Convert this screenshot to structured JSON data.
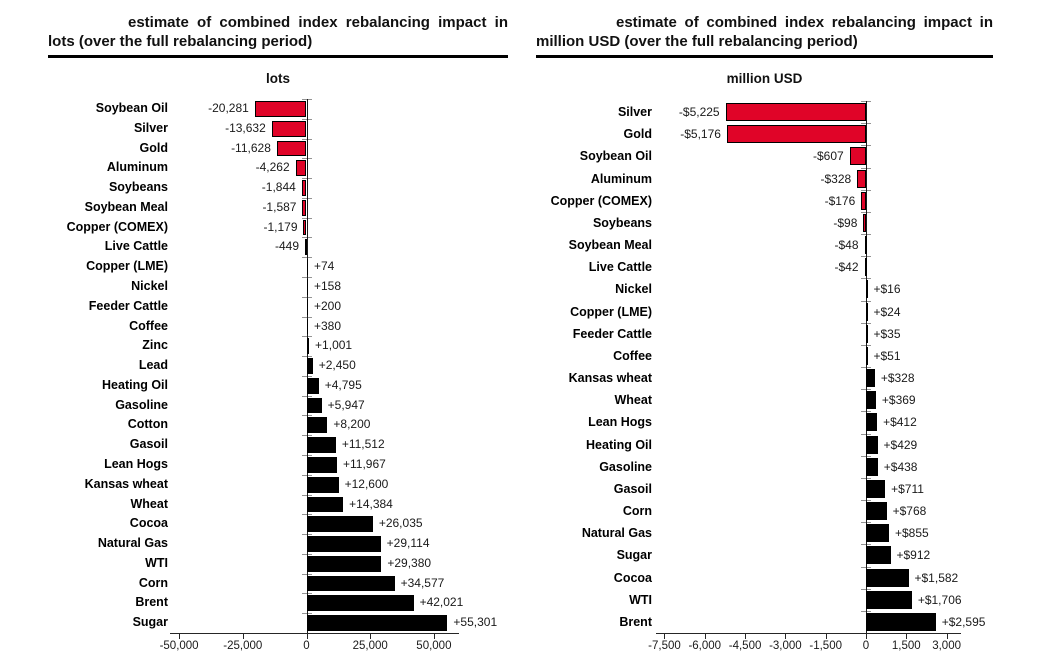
{
  "chart_data": [
    {
      "type": "bar",
      "orientation": "horizontal",
      "title": "estimate of combined index rebalancing impact in lots (over the full rebalancing period)",
      "axis_title": "lots",
      "unit": "lots",
      "gridlines": false,
      "legend": null,
      "xlim": [
        -53500,
        60500
      ],
      "bar_colors": {
        "negative": "#e00428",
        "positive": "#000000"
      },
      "categories": [
        "Soybean Oil",
        "Silver",
        "Gold",
        "Aluminum",
        "Soybeans",
        "Soybean Meal",
        "Copper (COMEX)",
        "Live Cattle",
        "Copper (LME)",
        "Nickel",
        "Feeder Cattle",
        "Coffee",
        "Zinc",
        "Lead",
        "Heating Oil",
        "Gasoline",
        "Cotton",
        "Gasoil",
        "Lean Hogs",
        "Kansas wheat",
        "Wheat",
        "Cocoa",
        "Natural Gas",
        "WTI",
        "Corn",
        "Brent",
        "Sugar"
      ],
      "values": [
        -20281,
        -13632,
        -11628,
        -4262,
        -1844,
        -1587,
        -1179,
        -449,
        74,
        158,
        200,
        380,
        1001,
        2450,
        4795,
        5947,
        8200,
        11512,
        11967,
        12600,
        14384,
        26035,
        29114,
        29380,
        34577,
        42021,
        55301
      ],
      "value_labels": [
        "-20,281",
        "-13,632",
        "-11,628",
        "-4,262",
        "-1,844",
        "-1,587",
        "-1,179",
        "-449",
        "+74",
        "+158",
        "+200",
        "+380",
        "+1,001",
        "+2,450",
        "+4,795",
        "+5,947",
        "+8,200",
        "+11,512",
        "+11,967",
        "+12,600",
        "+14,384",
        "+26,035",
        "+29,114",
        "+29,380",
        "+34,577",
        "+42,021",
        "+55,301"
      ],
      "x_tick_values": [
        -50000,
        -25000,
        0,
        25000,
        50000
      ],
      "x_tick_labels": [
        "-50,000",
        "-25,000",
        "0",
        "25,000",
        "50,000"
      ]
    },
    {
      "type": "bar",
      "orientation": "horizontal",
      "title": "estimate of combined index rebalancing impact in million USD (over the full rebalancing period)",
      "axis_title": "million USD",
      "unit": "million USD",
      "gridlines": false,
      "legend": null,
      "xlim": [
        -7800,
        3500
      ],
      "bar_colors": {
        "negative": "#e00428",
        "positive": "#000000"
      },
      "categories": [
        "Silver",
        "Gold",
        "Soybean Oil",
        "Aluminum",
        "Copper (COMEX)",
        "Soybeans",
        "Soybean Meal",
        "Live Cattle",
        "Nickel",
        "Copper (LME)",
        "Feeder Cattle",
        "Coffee",
        "Kansas wheat",
        "Wheat",
        "Lean Hogs",
        "Heating Oil",
        "Gasoline",
        "Gasoil",
        "Corn",
        "Natural Gas",
        "Sugar",
        "Cocoa",
        "WTI",
        "Brent"
      ],
      "values": [
        -5225,
        -5176,
        -607,
        -328,
        -176,
        -98,
        -48,
        -42,
        16,
        24,
        35,
        51,
        328,
        369,
        412,
        429,
        438,
        711,
        768,
        855,
        912,
        1582,
        1706,
        2595
      ],
      "value_labels": [
        "-$5,225",
        "-$5,176",
        "-$607",
        "-$328",
        "-$176",
        "-$98",
        "-$48",
        "-$42",
        "+$16",
        "+$24",
        "+$35",
        "+$51",
        "+$328",
        "+$369",
        "+$412",
        "+$429",
        "+$438",
        "+$711",
        "+$768",
        "+$855",
        "+$912",
        "+$1,582",
        "+$1,706",
        "+$2,595"
      ],
      "x_tick_values": [
        -7500,
        -6000,
        -4500,
        -3000,
        -1500,
        0,
        1500,
        3000
      ],
      "x_tick_labels": [
        "-7,500",
        "-6,000",
        "-4,500",
        "-3,000",
        "-1,500",
        "0",
        "1,500",
        "3,000"
      ]
    }
  ]
}
